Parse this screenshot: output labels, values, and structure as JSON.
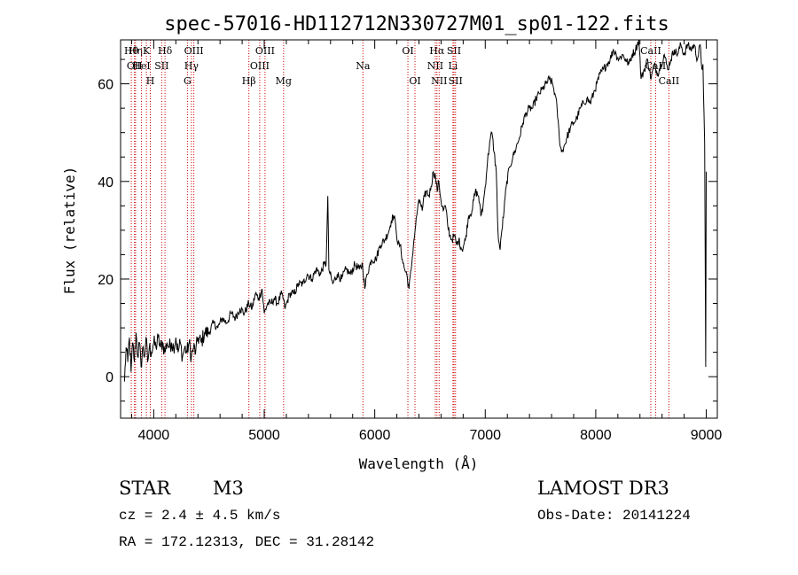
{
  "chart_data": {
    "type": "line",
    "title": "spec-57016-HD112712N330727M01_sp01-122.fits",
    "xlabel": "Wavelength (Å)",
    "ylabel": "Flux (relative)",
    "xlim": [
      3700,
      9100
    ],
    "ylim": [
      -8.5,
      69
    ],
    "xticks": [
      4000,
      5000,
      6000,
      7000,
      8000,
      9000
    ],
    "yticks": [
      0,
      20,
      40,
      60
    ],
    "line_color": "#000000",
    "marker_color": "#cc0000",
    "series": [
      {
        "name": "spectrum",
        "points": [
          [
            3735,
            -1
          ],
          [
            3750,
            6
          ],
          [
            3765,
            3
          ],
          [
            3780,
            8
          ],
          [
            3795,
            1
          ],
          [
            3810,
            7
          ],
          [
            3825,
            3
          ],
          [
            3840,
            9
          ],
          [
            3855,
            4
          ],
          [
            3870,
            7
          ],
          [
            3885,
            2
          ],
          [
            3900,
            6
          ],
          [
            3915,
            4
          ],
          [
            3930,
            8
          ],
          [
            3945,
            3
          ],
          [
            3960,
            6
          ],
          [
            3980,
            5
          ],
          [
            4000,
            7
          ],
          [
            4020,
            6
          ],
          [
            4040,
            8
          ],
          [
            4060,
            6
          ],
          [
            4080,
            7
          ],
          [
            4100,
            5
          ],
          [
            4120,
            7
          ],
          [
            4140,
            6
          ],
          [
            4160,
            7
          ],
          [
            4180,
            6
          ],
          [
            4200,
            8
          ],
          [
            4220,
            5
          ],
          [
            4240,
            7
          ],
          [
            4260,
            4
          ],
          [
            4280,
            6
          ],
          [
            4300,
            5
          ],
          [
            4320,
            7
          ],
          [
            4340,
            4
          ],
          [
            4360,
            6
          ],
          [
            4380,
            5
          ],
          [
            4400,
            8
          ],
          [
            4430,
            7
          ],
          [
            4460,
            9
          ],
          [
            4500,
            9
          ],
          [
            4540,
            11
          ],
          [
            4580,
            10
          ],
          [
            4620,
            12
          ],
          [
            4660,
            11
          ],
          [
            4700,
            13
          ],
          [
            4740,
            12
          ],
          [
            4780,
            14
          ],
          [
            4820,
            13
          ],
          [
            4860,
            15
          ],
          [
            4890,
            14
          ],
          [
            4920,
            17
          ],
          [
            4950,
            16
          ],
          [
            4980,
            18
          ],
          [
            5000,
            13
          ],
          [
            5030,
            15
          ],
          [
            5060,
            15
          ],
          [
            5090,
            16
          ],
          [
            5120,
            15
          ],
          [
            5160,
            17
          ],
          [
            5190,
            14
          ],
          [
            5230,
            17
          ],
          [
            5270,
            17
          ],
          [
            5310,
            19
          ],
          [
            5350,
            19
          ],
          [
            5390,
            21
          ],
          [
            5430,
            20
          ],
          [
            5470,
            22
          ],
          [
            5510,
            21
          ],
          [
            5540,
            23
          ],
          [
            5560,
            23
          ],
          [
            5575,
            37
          ],
          [
            5585,
            22
          ],
          [
            5620,
            19
          ],
          [
            5660,
            21
          ],
          [
            5700,
            20
          ],
          [
            5740,
            22
          ],
          [
            5780,
            21
          ],
          [
            5820,
            23
          ],
          [
            5860,
            22
          ],
          [
            5890,
            23
          ],
          [
            5910,
            18
          ],
          [
            5930,
            21
          ],
          [
            5970,
            24
          ],
          [
            6010,
            24
          ],
          [
            6050,
            27
          ],
          [
            6090,
            28
          ],
          [
            6130,
            30
          ],
          [
            6150,
            32
          ],
          [
            6170,
            33
          ],
          [
            6190,
            31
          ],
          [
            6210,
            27
          ],
          [
            6230,
            27
          ],
          [
            6250,
            24
          ],
          [
            6270,
            22
          ],
          [
            6290,
            21
          ],
          [
            6310,
            18
          ],
          [
            6330,
            22
          ],
          [
            6350,
            27
          ],
          [
            6370,
            31
          ],
          [
            6390,
            35
          ],
          [
            6410,
            36
          ],
          [
            6430,
            34
          ],
          [
            6450,
            37
          ],
          [
            6470,
            38
          ],
          [
            6490,
            37
          ],
          [
            6510,
            39
          ],
          [
            6530,
            42
          ],
          [
            6550,
            41
          ],
          [
            6565,
            38
          ],
          [
            6580,
            40
          ],
          [
            6600,
            36
          ],
          [
            6620,
            34
          ],
          [
            6640,
            35
          ],
          [
            6660,
            31
          ],
          [
            6680,
            29
          ],
          [
            6700,
            28
          ],
          [
            6720,
            29
          ],
          [
            6740,
            27
          ],
          [
            6760,
            28
          ],
          [
            6790,
            26
          ],
          [
            6820,
            28
          ],
          [
            6850,
            33
          ],
          [
            6880,
            34
          ],
          [
            6910,
            38
          ],
          [
            6940,
            37
          ],
          [
            6960,
            33
          ],
          [
            6980,
            35
          ],
          [
            7000,
            39
          ],
          [
            7020,
            44
          ],
          [
            7040,
            48
          ],
          [
            7060,
            50
          ],
          [
            7080,
            46
          ],
          [
            7100,
            42
          ],
          [
            7110,
            33
          ],
          [
            7120,
            28
          ],
          [
            7135,
            26
          ],
          [
            7150,
            30
          ],
          [
            7170,
            34
          ],
          [
            7190,
            39
          ],
          [
            7220,
            43
          ],
          [
            7250,
            45
          ],
          [
            7280,
            47
          ],
          [
            7310,
            49
          ],
          [
            7340,
            52
          ],
          [
            7370,
            54
          ],
          [
            7400,
            55
          ],
          [
            7430,
            55
          ],
          [
            7460,
            57
          ],
          [
            7490,
            58
          ],
          [
            7520,
            59
          ],
          [
            7550,
            60
          ],
          [
            7580,
            61
          ],
          [
            7610,
            60
          ],
          [
            7630,
            58
          ],
          [
            7650,
            55
          ],
          [
            7670,
            49
          ],
          [
            7690,
            46
          ],
          [
            7710,
            47
          ],
          [
            7740,
            49
          ],
          [
            7770,
            51
          ],
          [
            7800,
            52
          ],
          [
            7830,
            53
          ],
          [
            7860,
            55
          ],
          [
            7890,
            56
          ],
          [
            7920,
            57
          ],
          [
            7950,
            56
          ],
          [
            7980,
            58
          ],
          [
            8010,
            60
          ],
          [
            8040,
            62
          ],
          [
            8070,
            63
          ],
          [
            8100,
            64
          ],
          [
            8130,
            65
          ],
          [
            8160,
            67
          ],
          [
            8185,
            66
          ],
          [
            8210,
            65
          ],
          [
            8240,
            66
          ],
          [
            8270,
            65
          ],
          [
            8300,
            64
          ],
          [
            8330,
            66
          ],
          [
            8360,
            67
          ],
          [
            8390,
            69
          ],
          [
            8410,
            61
          ],
          [
            8440,
            63
          ],
          [
            8470,
            65
          ],
          [
            8500,
            61
          ],
          [
            8530,
            64
          ],
          [
            8560,
            62
          ],
          [
            8590,
            64
          ],
          [
            8620,
            66
          ],
          [
            8650,
            63
          ],
          [
            8680,
            65
          ],
          [
            8710,
            67
          ],
          [
            8740,
            66
          ],
          [
            8770,
            68
          ],
          [
            8800,
            66
          ],
          [
            8830,
            68
          ],
          [
            8860,
            67
          ],
          [
            8890,
            68
          ],
          [
            8920,
            65
          ],
          [
            8945,
            68
          ],
          [
            8960,
            63
          ],
          [
            8970,
            64
          ],
          [
            8985,
            48
          ],
          [
            8995,
            2
          ],
          [
            9000,
            42
          ]
        ]
      }
    ],
    "line_markers": [
      {
        "wavelength": 3797,
        "row": 0,
        "label": "Hθ"
      },
      {
        "wavelength": 3835,
        "row": 0,
        "label": "Hη"
      },
      {
        "wavelength": 3826,
        "row": 1,
        "label": "OII"
      },
      {
        "wavelength": 3889,
        "row": 1,
        "label": "HeI"
      },
      {
        "wavelength": 3934,
        "row": 0,
        "label": "K"
      },
      {
        "wavelength": 3969,
        "row": 2,
        "label": "H"
      },
      {
        "wavelength": 4072,
        "row": 1,
        "label": "SII"
      },
      {
        "wavelength": 4102,
        "row": 0,
        "label": "Hδ"
      },
      {
        "wavelength": 4305,
        "row": 2,
        "label": "G"
      },
      {
        "wavelength": 4341,
        "row": 1,
        "label": "Hγ"
      },
      {
        "wavelength": 4363,
        "row": 0,
        "label": "OIII"
      },
      {
        "wavelength": 4861,
        "row": 2,
        "label": "Hβ"
      },
      {
        "wavelength": 4959,
        "row": 1,
        "label": "OIII"
      },
      {
        "wavelength": 5007,
        "row": 0,
        "label": "OIII"
      },
      {
        "wavelength": 5175,
        "row": 2,
        "label": "Mg"
      },
      {
        "wavelength": 5893,
        "row": 1,
        "label": "Na"
      },
      {
        "wavelength": 6300,
        "row": 0,
        "label": "OI"
      },
      {
        "wavelength": 6364,
        "row": 2,
        "label": "OI"
      },
      {
        "wavelength": 6548,
        "row": 1,
        "label": "NII"
      },
      {
        "wavelength": 6563,
        "row": 0,
        "label": "Hα"
      },
      {
        "wavelength": 6583,
        "row": 2,
        "label": "NII"
      },
      {
        "wavelength": 6708,
        "row": 1,
        "label": "Li"
      },
      {
        "wavelength": 6717,
        "row": 0,
        "label": "SII"
      },
      {
        "wavelength": 6731,
        "row": 2,
        "label": "SII"
      },
      {
        "wavelength": 8498,
        "row": 0,
        "label": "CaII"
      },
      {
        "wavelength": 8542,
        "row": 1,
        "label": "CaII"
      },
      {
        "wavelength": 8662,
        "row": 2,
        "label": "CaII"
      }
    ]
  },
  "info": {
    "class": "STAR",
    "subclass": "M3",
    "survey": "LAMOST DR3",
    "cz": "cz = 2.4 ± 4.5 km/s",
    "obs_date": "Obs-Date: 20141224",
    "coords": "RA = 172.12313, DEC =  31.28142"
  }
}
